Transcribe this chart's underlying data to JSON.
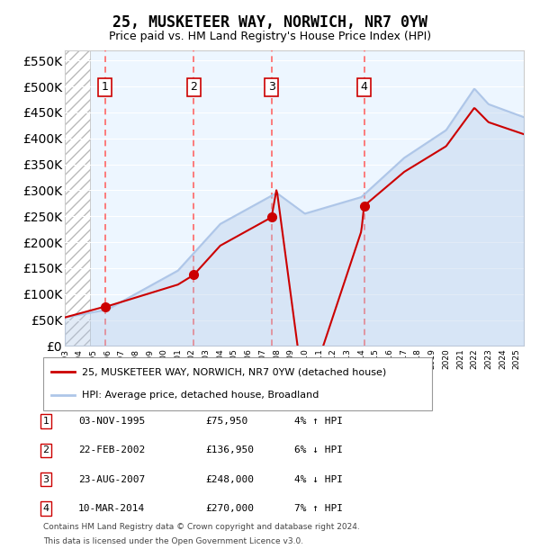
{
  "title": "25, MUSKETEER WAY, NORWICH, NR7 0YW",
  "subtitle": "Price paid vs. HM Land Registry's House Price Index (HPI)",
  "legend_line1": "25, MUSKETEER WAY, NORWICH, NR7 0YW (detached house)",
  "legend_line2": "HPI: Average price, detached house, Broadland",
  "footnote1": "Contains HM Land Registry data © Crown copyright and database right 2024.",
  "footnote2": "This data is licensed under the Open Government Licence v3.0.",
  "purchases": [
    {
      "num": 1,
      "date": "03-NOV-1995",
      "price": 75950,
      "pct": "4%",
      "dir": "↑",
      "year": 1995.84
    },
    {
      "num": 2,
      "date": "22-FEB-2002",
      "price": 136950,
      "pct": "6%",
      "dir": "↓",
      "year": 2002.13
    },
    {
      "num": 3,
      "date": "23-AUG-2007",
      "price": 248000,
      "pct": "4%",
      "dir": "↓",
      "year": 2007.64
    },
    {
      "num": 4,
      "date": "10-MAR-2014",
      "price": 270000,
      "pct": "7%",
      "dir": "↑",
      "year": 2014.19
    }
  ],
  "hpi_color": "#aec6e8",
  "price_color": "#cc0000",
  "dashed_color": "#ff6666",
  "bg_color": "#ddeeff",
  "ylim": [
    0,
    570000
  ],
  "xlim_start": 1993,
  "xlim_end": 2025.5
}
